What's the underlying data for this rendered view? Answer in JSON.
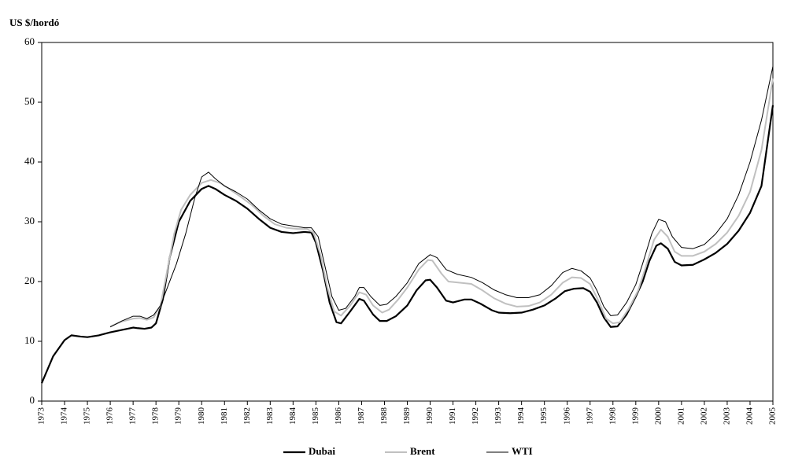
{
  "chart_data": {
    "type": "line",
    "y_label": "US $/hordó",
    "xlim": [
      1973,
      2005
    ],
    "xticks": [
      1973,
      1974,
      1975,
      1976,
      1977,
      1978,
      1979,
      1980,
      1981,
      1982,
      1983,
      1984,
      1985,
      1986,
      1987,
      1988,
      1989,
      1990,
      1991,
      1992,
      1993,
      1994,
      1995,
      1996,
      1997,
      1998,
      1999,
      2000,
      2001,
      2002,
      2003,
      2004,
      2005
    ],
    "ylim": [
      0,
      60
    ],
    "yticks": [
      0,
      10,
      20,
      30,
      40,
      50,
      60
    ],
    "grid": false,
    "legend": "bottom",
    "series": [
      {
        "name": "Dubai",
        "color": "#000000",
        "x": [
          1973,
          1973.5,
          1974,
          1974.3,
          1974.7,
          1975,
          1975.5,
          1976,
          1976.5,
          1977,
          1977.2,
          1977.5,
          1977.8,
          1978,
          1978.3,
          1978.6,
          1979,
          1979.5,
          1980,
          1980.3,
          1980.6,
          1981,
          1981.5,
          1982,
          1982.5,
          1983,
          1983.5,
          1984,
          1984.5,
          1984.8,
          1985,
          1985.3,
          1985.6,
          1985.9,
          1986.1,
          1986.5,
          1986.9,
          1987.1,
          1987.5,
          1987.8,
          1988.1,
          1988.5,
          1989,
          1989.4,
          1989.8,
          1990,
          1990.3,
          1990.7,
          1991,
          1991.5,
          1991.8,
          1992.2,
          1992.7,
          1993,
          1993.5,
          1994,
          1994.5,
          1995,
          1995.5,
          1995.9,
          1996.3,
          1996.7,
          1997,
          1997.3,
          1997.6,
          1997.9,
          1998.2,
          1998.6,
          1999,
          1999.3,
          1999.6,
          1999.9,
          2000.1,
          2000.4,
          2000.7,
          2001,
          2001.5,
          2002,
          2002.5,
          2003,
          2003.5,
          2004,
          2004.5,
          2005
        ],
        "values": [
          3,
          7.5,
          10.2,
          11,
          10.8,
          10.7,
          11,
          11.5,
          11.9,
          12.3,
          12.2,
          12.1,
          12.3,
          13,
          17,
          24,
          30,
          33.5,
          35.5,
          36,
          35.5,
          34.5,
          33.5,
          32.2,
          30.5,
          29,
          28.3,
          28.1,
          28.3,
          28.2,
          26.5,
          22,
          16.5,
          13.2,
          13,
          15,
          17.1,
          16.8,
          14.5,
          13.4,
          13.4,
          14.2,
          16,
          18.5,
          20.2,
          20.3,
          19,
          16.8,
          16.5,
          17,
          17,
          16.3,
          15.2,
          14.8,
          14.7,
          14.8,
          15.3,
          16,
          17.2,
          18.4,
          18.8,
          18.9,
          18.3,
          16.5,
          14,
          12.4,
          12.5,
          14.5,
          17.5,
          20,
          23.5,
          26,
          26.4,
          25.5,
          23.3,
          22.7,
          22.8,
          23.7,
          24.8,
          26.3,
          28.5,
          31.5,
          36,
          49.5
        ]
      },
      {
        "name": "Brent",
        "color": "#c0c0c0",
        "x": [
          1976,
          1976.5,
          1977,
          1977.3,
          1977.6,
          1977.9,
          1978.2,
          1978.5,
          1978.8,
          1979.1,
          1979.5,
          1980,
          1980.4,
          1980.8,
          1981.2,
          1981.7,
          1982.2,
          1982.7,
          1983.2,
          1983.7,
          1984.2,
          1984.6,
          1984.9,
          1985.2,
          1985.5,
          1985.8,
          1986.1,
          1986.5,
          1986.9,
          1987.2,
          1987.5,
          1987.9,
          1988.2,
          1988.6,
          1989,
          1989.5,
          1989.9,
          1990.1,
          1990.5,
          1990.8,
          1991.3,
          1991.8,
          1992.3,
          1992.8,
          1993.3,
          1993.8,
          1994.3,
          1994.8,
          1995.3,
          1995.8,
          1996.2,
          1996.6,
          1997,
          1997.4,
          1997.7,
          1998,
          1998.3,
          1998.7,
          1999.1,
          1999.4,
          1999.8,
          2000.1,
          2000.4,
          2000.7,
          2001,
          2001.5,
          2002,
          2002.5,
          2003,
          2003.5,
          2004,
          2004.5,
          2005
        ],
        "values": [
          12.5,
          13.3,
          13.8,
          13.9,
          13.6,
          14,
          16,
          22,
          28,
          32,
          34.5,
          36.5,
          37,
          36.5,
          35.5,
          34.2,
          32.8,
          31,
          29.6,
          29,
          28.8,
          28.8,
          28.2,
          24.5,
          19,
          15,
          14.3,
          16,
          18.2,
          17.8,
          16,
          14.8,
          15.3,
          17,
          19,
          22,
          23.6,
          23.5,
          21.3,
          20,
          19.8,
          19.6,
          18.5,
          17.2,
          16.3,
          15.8,
          15.9,
          16.5,
          17.8,
          19.8,
          20.7,
          20.6,
          19.6,
          16.5,
          13.8,
          13,
          13.2,
          15.5,
          18.5,
          22,
          27,
          28.7,
          27.5,
          25,
          24.3,
          24.3,
          25,
          26.3,
          28.2,
          31,
          35,
          42,
          54
        ]
      },
      {
        "name": "WTI",
        "color": "#000000",
        "x": [
          1976,
          1976.5,
          1977,
          1977.3,
          1977.6,
          1977.9,
          1978.2,
          1978.5,
          1978.9,
          1979.3,
          1979.7,
          1980,
          1980.3,
          1980.6,
          1981,
          1981.5,
          1982,
          1982.5,
          1983,
          1983.5,
          1984,
          1984.5,
          1984.8,
          1985.1,
          1985.4,
          1985.7,
          1986,
          1986.3,
          1986.7,
          1986.9,
          1987.1,
          1987.4,
          1987.8,
          1988.1,
          1988.5,
          1989,
          1989.5,
          1990,
          1990.3,
          1990.7,
          1991.2,
          1991.8,
          1992.3,
          1992.8,
          1993.3,
          1993.8,
          1994.3,
          1994.8,
          1995.3,
          1995.8,
          1996.2,
          1996.6,
          1997,
          1997.3,
          1997.6,
          1997.9,
          1998.2,
          1998.6,
          1999,
          1999.3,
          1999.7,
          2000,
          2000.3,
          2000.6,
          2001,
          2001.5,
          2002,
          2002.5,
          2003,
          2003.5,
          2004,
          2004.5,
          2005
        ],
        "values": [
          12.4,
          13.4,
          14.2,
          14.2,
          13.8,
          14.4,
          16,
          19,
          23,
          28,
          34,
          37.5,
          38.3,
          37.2,
          36,
          35,
          33.8,
          32,
          30.5,
          29.6,
          29.3,
          29,
          29,
          27.5,
          22.5,
          17.5,
          15.2,
          15.5,
          17.5,
          19,
          19,
          17.5,
          16,
          16.2,
          17.5,
          19.8,
          23,
          24.5,
          24,
          22,
          21.2,
          20.7,
          19.8,
          18.6,
          17.8,
          17.3,
          17.3,
          17.8,
          19.3,
          21.5,
          22.2,
          21.8,
          20.6,
          18.5,
          15.8,
          14.3,
          14.4,
          16.5,
          19.5,
          23,
          28,
          30.4,
          30,
          27.5,
          25.7,
          25.5,
          26.2,
          28,
          30.5,
          34.5,
          40,
          47,
          56
        ]
      }
    ]
  }
}
